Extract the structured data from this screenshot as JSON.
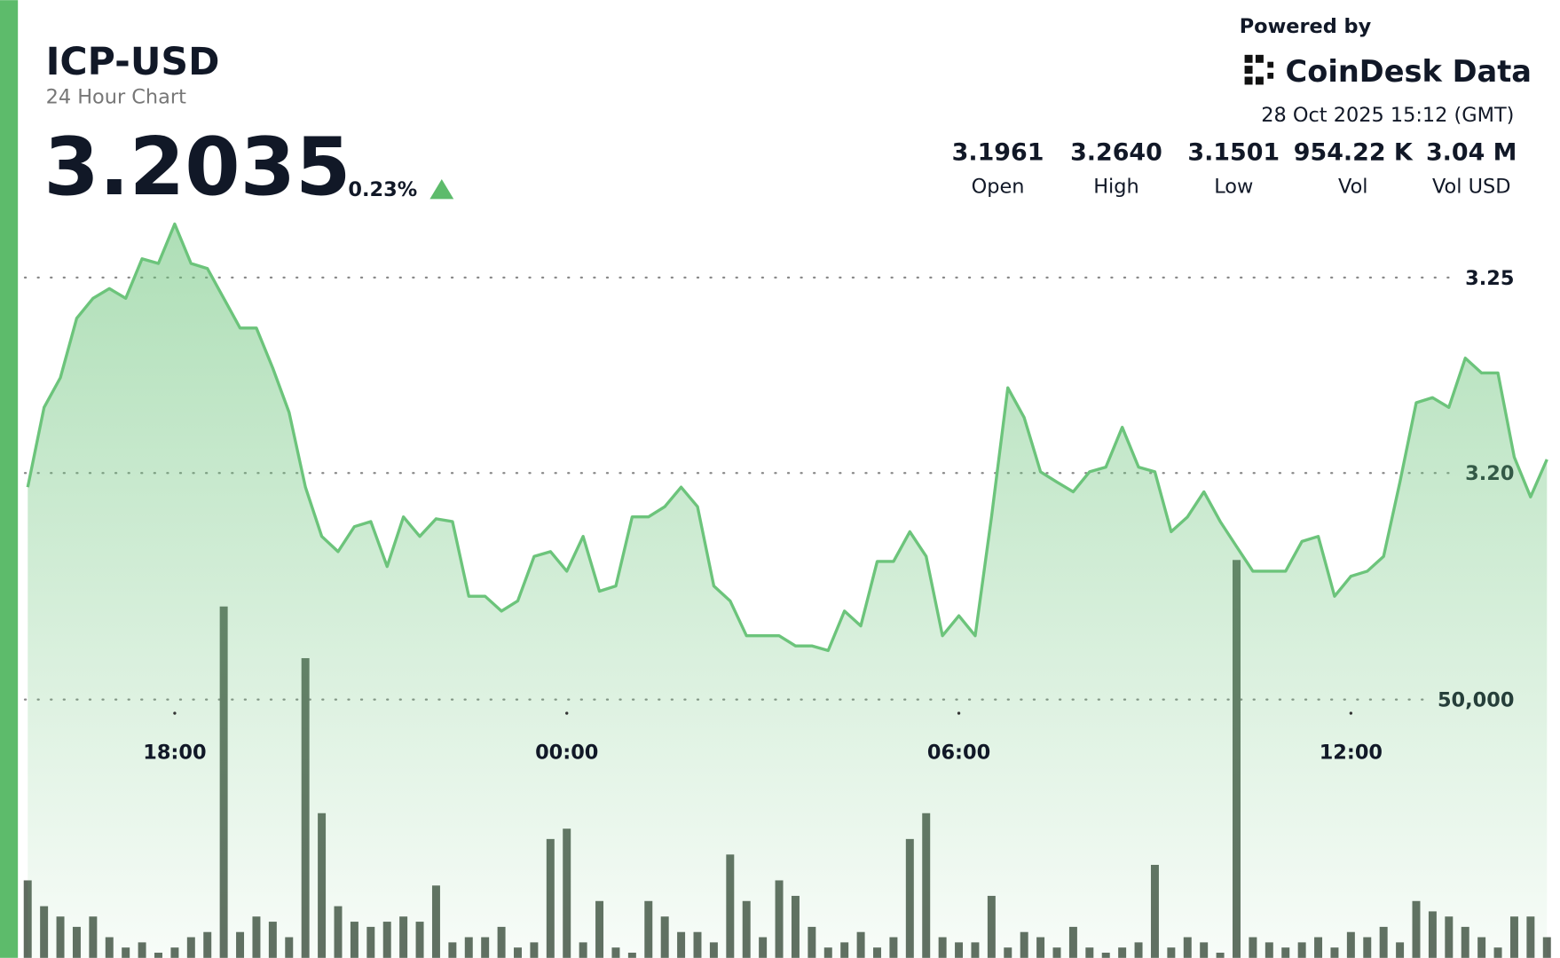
{
  "header": {
    "title": "ICP-USD",
    "subtitle": "24 Hour Chart",
    "price": "3.2035",
    "change": "0.23%",
    "powered_by": "Powered by",
    "brand": "CoinDesk Data",
    "timestamp": "28 Oct 2025 15:12 (GMT)",
    "stats": [
      {
        "value": "3.1961",
        "label": "Open"
      },
      {
        "value": "3.2640",
        "label": "High"
      },
      {
        "value": "3.1501",
        "label": "Low"
      },
      {
        "value": "954.22 K",
        "label": "Vol"
      },
      {
        "value": "3.04 M",
        "label": "Vol USD"
      }
    ]
  },
  "chart_data": {
    "type": "area",
    "x": [
      "15:45",
      "16:00",
      "16:15",
      "16:30",
      "16:45",
      "17:00",
      "17:15",
      "17:30",
      "17:45",
      "18:00",
      "18:15",
      "18:30",
      "18:45",
      "19:00",
      "19:15",
      "19:30",
      "19:45",
      "20:00",
      "20:15",
      "20:30",
      "20:45",
      "21:00",
      "21:15",
      "21:30",
      "21:45",
      "22:00",
      "22:15",
      "22:30",
      "22:45",
      "23:00",
      "23:15",
      "23:30",
      "23:45",
      "00:00",
      "00:15",
      "00:30",
      "00:45",
      "01:00",
      "01:15",
      "01:30",
      "01:45",
      "02:00",
      "02:15",
      "02:30",
      "02:45",
      "03:00",
      "03:15",
      "03:30",
      "03:45",
      "04:00",
      "04:15",
      "04:30",
      "04:45",
      "05:00",
      "05:15",
      "05:30",
      "05:45",
      "06:00",
      "06:15",
      "06:30",
      "06:45",
      "07:00",
      "07:15",
      "07:30",
      "07:45",
      "08:00",
      "08:15",
      "08:30",
      "08:45",
      "09:00",
      "09:15",
      "09:30",
      "09:45",
      "10:00",
      "10:15",
      "10:30",
      "10:45",
      "11:00",
      "11:15",
      "11:30",
      "11:45",
      "12:00",
      "12:15",
      "12:30",
      "12:45",
      "13:00",
      "13:15",
      "13:30",
      "13:45",
      "14:00",
      "14:15",
      "14:30",
      "14:45",
      "15:00"
    ],
    "series": [
      {
        "color": "#6cc47b",
        "values": [
          3.1964,
          3.2168,
          3.2244,
          3.2396,
          3.2447,
          3.2472,
          3.2447,
          3.2548,
          3.2536,
          3.2637,
          3.2536,
          3.2523,
          3.2447,
          3.2371,
          3.2371,
          3.2269,
          3.2155,
          3.1964,
          3.1838,
          3.1799,
          3.1863,
          3.1876,
          3.1761,
          3.1888,
          3.1838,
          3.1883,
          3.1876,
          3.1685,
          3.1685,
          3.1647,
          3.1673,
          3.1787,
          3.1799,
          3.1749,
          3.1838,
          3.1698,
          3.1711,
          3.1888,
          3.1888,
          3.1914,
          3.1964,
          3.1914,
          3.1711,
          3.1673,
          3.1584,
          3.1584,
          3.1584,
          3.1558,
          3.1558,
          3.1546,
          3.1647,
          3.1609,
          3.1774,
          3.1774,
          3.185,
          3.1787,
          3.1584,
          3.1635,
          3.1584,
          3.1888,
          3.2218,
          3.2142,
          3.2003,
          3.1977,
          3.1952,
          3.2003,
          3.2015,
          3.2117,
          3.2015,
          3.2003,
          3.185,
          3.1888,
          3.1952,
          3.1876,
          3.1812,
          3.1749,
          3.1749,
          3.1749,
          3.1825,
          3.1838,
          3.1685,
          3.1736,
          3.1749,
          3.1787,
          3.1977,
          3.218,
          3.2193,
          3.2168,
          3.2294,
          3.2256,
          3.2256,
          3.2041,
          3.1939,
          3.2035
        ]
      },
      {
        "color": "#5f6b60",
        "axis": "y2",
        "values": [
          15000,
          10000,
          8000,
          6000,
          8000,
          4000,
          2000,
          3000,
          1000,
          2000,
          4000,
          5000,
          68000,
          5000,
          8000,
          7000,
          4000,
          58000,
          28000,
          10000,
          7000,
          6000,
          7000,
          8000,
          7000,
          14000,
          3000,
          4000,
          4000,
          6000,
          2000,
          3000,
          23000,
          25000,
          3000,
          11000,
          2000,
          1000,
          11000,
          8000,
          5000,
          5000,
          3000,
          20000,
          11000,
          4000,
          15000,
          12000,
          6000,
          2000,
          3000,
          5000,
          2000,
          4000,
          23000,
          28000,
          4000,
          3000,
          3000,
          12000,
          2000,
          5000,
          4000,
          2000,
          6000,
          2000,
          1000,
          2000,
          3000,
          18000,
          2000,
          4000,
          3000,
          1000,
          77000,
          4000,
          3000,
          2000,
          3000,
          4000,
          2000,
          5000,
          4000,
          6000,
          3000,
          11000,
          9000,
          8000,
          6000,
          4000,
          2000,
          8000,
          8000,
          4000
        ]
      }
    ],
    "xlim": [
      "15:36",
      "15:12"
    ],
    "xticks": [
      "18:00",
      "00:00",
      "06:00",
      "12:00"
    ],
    "ylim": [
      3.076,
      3.265
    ],
    "yticks": [
      {
        "value": 3.2,
        "label": "3.20"
      },
      {
        "value": 3.25,
        "label": "3.25"
      }
    ],
    "y2lim": [
      0,
      143000
    ],
    "y2ticks": [
      {
        "value": 50000,
        "label": "50,000"
      }
    ],
    "grid": true
  }
}
